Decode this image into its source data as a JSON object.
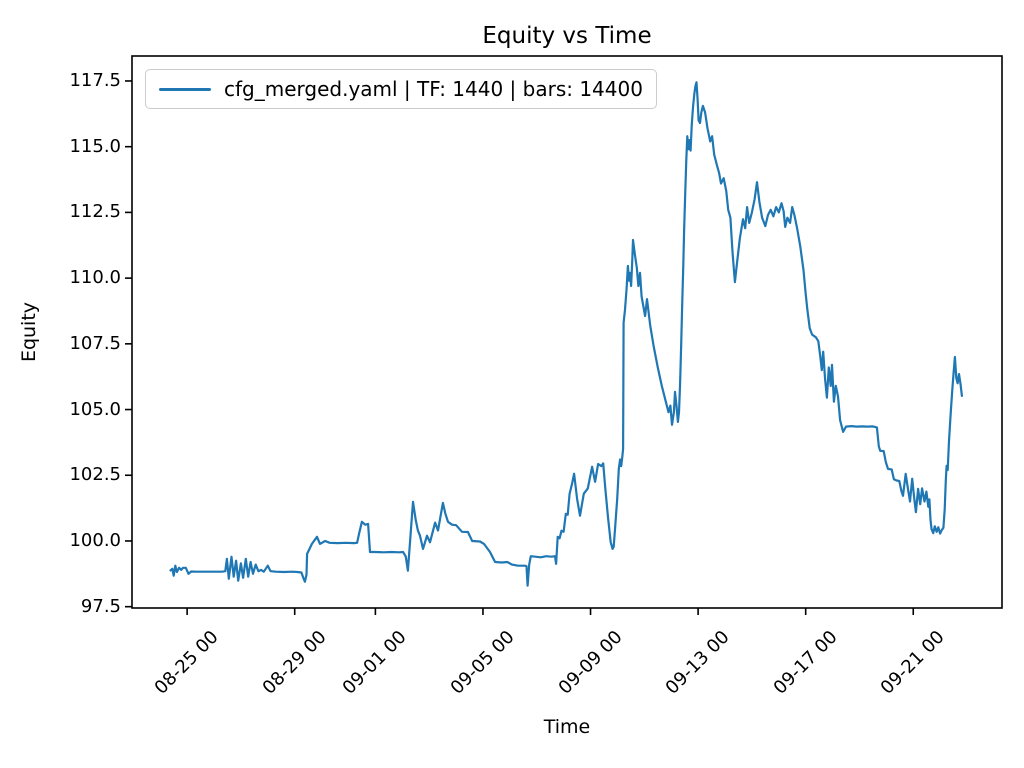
{
  "figure": {
    "title": "Equity vs Time",
    "xlabel": "Time",
    "ylabel": "Equity"
  },
  "legend": {
    "label": "cfg_merged.yaml | TF: 1440 | bars: 14400"
  },
  "colors": {
    "line": "#1f77b4",
    "spine": "#000000",
    "legend_border": "#cccccc",
    "background": "#ffffff",
    "text": "#000000"
  },
  "chart_data": {
    "type": "line",
    "title": "Equity vs Time",
    "xlabel": "Time",
    "ylabel": "Equity",
    "grid": false,
    "legend_position": "upper left",
    "legend_entries": [
      "cfg_merged.yaml | TF: 1440 | bars: 14400"
    ],
    "x_axis": {
      "unit": "days relative to 08-25 00:00",
      "range": [
        -2.05,
        30.3
      ],
      "tick_values": [
        0,
        4,
        7,
        11,
        15,
        19,
        23,
        27
      ],
      "tick_labels": [
        "08-25 00",
        "08-29 00",
        "09-01 00",
        "09-05 00",
        "09-09 00",
        "09-13 00",
        "09-17 00",
        "09-21 00"
      ],
      "tick_rotation_deg": 45
    },
    "y_axis": {
      "range": [
        97.45,
        118.45
      ],
      "tick_values": [
        97.5,
        100.0,
        102.5,
        105.0,
        107.5,
        110.0,
        112.5,
        115.0,
        117.5
      ],
      "tick_labels": [
        "97.5",
        "100.0",
        "102.5",
        "105.0",
        "107.5",
        "110.0",
        "112.5",
        "115.0",
        "117.5"
      ]
    },
    "series": [
      {
        "name": "cfg_merged.yaml | TF: 1440 | bars: 14400",
        "color": "#1f77b4",
        "line_width": 2.2,
        "points": [
          [
            -0.62,
            98.88
          ],
          [
            -0.55,
            98.94
          ],
          [
            -0.5,
            98.68
          ],
          [
            -0.44,
            99.06
          ],
          [
            -0.38,
            98.82
          ],
          [
            -0.3,
            98.98
          ],
          [
            -0.22,
            98.9
          ],
          [
            -0.15,
            98.98
          ],
          [
            -0.05,
            98.98
          ],
          [
            0.05,
            98.75
          ],
          [
            0.15,
            98.84
          ],
          [
            0.35,
            98.83
          ],
          [
            0.6,
            98.83
          ],
          [
            0.85,
            98.83
          ],
          [
            1.1,
            98.83
          ],
          [
            1.3,
            98.83
          ],
          [
            1.42,
            98.85
          ],
          [
            1.48,
            99.32
          ],
          [
            1.55,
            98.56
          ],
          [
            1.65,
            99.4
          ],
          [
            1.73,
            98.64
          ],
          [
            1.82,
            99.25
          ],
          [
            1.9,
            98.49
          ],
          [
            2.0,
            99.15
          ],
          [
            2.08,
            98.6
          ],
          [
            2.18,
            99.32
          ],
          [
            2.27,
            98.64
          ],
          [
            2.36,
            99.2
          ],
          [
            2.45,
            98.75
          ],
          [
            2.55,
            99.1
          ],
          [
            2.65,
            98.85
          ],
          [
            2.75,
            98.9
          ],
          [
            2.85,
            98.83
          ],
          [
            3.0,
            99.06
          ],
          [
            3.1,
            98.85
          ],
          [
            3.3,
            98.83
          ],
          [
            3.6,
            98.82
          ],
          [
            3.9,
            98.83
          ],
          [
            4.1,
            98.82
          ],
          [
            4.25,
            98.8
          ],
          [
            4.32,
            98.6
          ],
          [
            4.38,
            98.45
          ],
          [
            4.44,
            98.72
          ],
          [
            4.46,
            99.51
          ],
          [
            4.55,
            99.7
          ],
          [
            4.64,
            99.89
          ],
          [
            4.83,
            100.16
          ],
          [
            4.94,
            99.89
          ],
          [
            5.13,
            100.0
          ],
          [
            5.3,
            99.93
          ],
          [
            5.6,
            99.92
          ],
          [
            5.9,
            99.93
          ],
          [
            6.2,
            99.92
          ],
          [
            6.32,
            99.93
          ],
          [
            6.4,
            100.3
          ],
          [
            6.5,
            100.73
          ],
          [
            6.62,
            100.62
          ],
          [
            6.73,
            100.65
          ],
          [
            6.8,
            99.58
          ],
          [
            7.0,
            99.58
          ],
          [
            7.3,
            99.57
          ],
          [
            7.6,
            99.58
          ],
          [
            7.9,
            99.57
          ],
          [
            8.03,
            99.58
          ],
          [
            8.13,
            99.4
          ],
          [
            8.21,
            98.87
          ],
          [
            8.3,
            100.1
          ],
          [
            8.4,
            101.49
          ],
          [
            8.5,
            100.8
          ],
          [
            8.58,
            100.4
          ],
          [
            8.66,
            100.2
          ],
          [
            8.77,
            99.7
          ],
          [
            8.92,
            100.2
          ],
          [
            9.03,
            99.95
          ],
          [
            9.22,
            100.7
          ],
          [
            9.33,
            100.4
          ],
          [
            9.51,
            101.45
          ],
          [
            9.6,
            101.05
          ],
          [
            9.7,
            100.73
          ],
          [
            9.85,
            100.62
          ],
          [
            10.0,
            100.6
          ],
          [
            10.22,
            100.35
          ],
          [
            10.44,
            100.34
          ],
          [
            10.6,
            100.0
          ],
          [
            10.89,
            99.98
          ],
          [
            11.04,
            99.89
          ],
          [
            11.26,
            99.58
          ],
          [
            11.45,
            99.2
          ],
          [
            11.7,
            99.18
          ],
          [
            11.9,
            99.2
          ],
          [
            12.08,
            99.1
          ],
          [
            12.3,
            99.06
          ],
          [
            12.55,
            99.06
          ],
          [
            12.62,
            99.04
          ],
          [
            12.66,
            98.3
          ],
          [
            12.72,
            99.1
          ],
          [
            12.78,
            99.42
          ],
          [
            12.95,
            99.4
          ],
          [
            13.15,
            99.38
          ],
          [
            13.35,
            99.42
          ],
          [
            13.55,
            99.4
          ],
          [
            13.68,
            99.42
          ],
          [
            13.72,
            99.13
          ],
          [
            13.78,
            100.16
          ],
          [
            13.85,
            100.1
          ],
          [
            13.92,
            100.39
          ],
          [
            14.0,
            100.35
          ],
          [
            14.08,
            101.03
          ],
          [
            14.15,
            101.0
          ],
          [
            14.22,
            101.8
          ],
          [
            14.32,
            102.2
          ],
          [
            14.39,
            102.56
          ],
          [
            14.5,
            101.6
          ],
          [
            14.61,
            100.96
          ],
          [
            14.75,
            101.8
          ],
          [
            14.9,
            102.0
          ],
          [
            15.06,
            102.82
          ],
          [
            15.17,
            102.25
          ],
          [
            15.28,
            102.93
          ],
          [
            15.4,
            102.85
          ],
          [
            15.47,
            102.95
          ],
          [
            15.55,
            102.0
          ],
          [
            15.65,
            100.9
          ],
          [
            15.75,
            99.95
          ],
          [
            15.82,
            99.7
          ],
          [
            15.86,
            99.78
          ],
          [
            15.92,
            100.6
          ],
          [
            15.99,
            101.6
          ],
          [
            16.05,
            102.74
          ],
          [
            16.1,
            103.1
          ],
          [
            16.14,
            102.85
          ],
          [
            16.18,
            103.2
          ],
          [
            16.21,
            103.5
          ],
          [
            16.23,
            108.3
          ],
          [
            16.28,
            108.8
          ],
          [
            16.34,
            109.6
          ],
          [
            16.39,
            110.46
          ],
          [
            16.43,
            109.9
          ],
          [
            16.47,
            110.2
          ],
          [
            16.51,
            109.7
          ],
          [
            16.55,
            110.6
          ],
          [
            16.58,
            111.45
          ],
          [
            16.65,
            110.9
          ],
          [
            16.72,
            110.4
          ],
          [
            16.78,
            109.7
          ],
          [
            16.84,
            110.2
          ],
          [
            16.9,
            109.3
          ],
          [
            17.03,
            108.56
          ],
          [
            17.1,
            109.2
          ],
          [
            17.22,
            108.2
          ],
          [
            17.35,
            107.4
          ],
          [
            17.5,
            106.6
          ],
          [
            17.65,
            105.9
          ],
          [
            17.8,
            105.3
          ],
          [
            17.9,
            104.9
          ],
          [
            17.97,
            105.15
          ],
          [
            18.03,
            104.42
          ],
          [
            18.1,
            104.9
          ],
          [
            18.14,
            105.67
          ],
          [
            18.2,
            105.1
          ],
          [
            18.25,
            104.53
          ],
          [
            18.29,
            104.9
          ],
          [
            18.33,
            106.0
          ],
          [
            18.37,
            107.5
          ],
          [
            18.41,
            109.0
          ],
          [
            18.45,
            110.5
          ],
          [
            18.48,
            111.8
          ],
          [
            18.52,
            113.2
          ],
          [
            18.56,
            114.5
          ],
          [
            18.6,
            115.4
          ],
          [
            18.64,
            114.9
          ],
          [
            18.68,
            115.25
          ],
          [
            18.72,
            114.85
          ],
          [
            18.76,
            115.8
          ],
          [
            18.81,
            116.5
          ],
          [
            18.86,
            117.0
          ],
          [
            18.9,
            117.3
          ],
          [
            18.94,
            117.45
          ],
          [
            18.98,
            116.8
          ],
          [
            19.02,
            116.0
          ],
          [
            19.07,
            115.9
          ],
          [
            19.12,
            116.3
          ],
          [
            19.18,
            116.55
          ],
          [
            19.26,
            116.3
          ],
          [
            19.35,
            115.7
          ],
          [
            19.45,
            115.2
          ],
          [
            19.52,
            115.4
          ],
          [
            19.6,
            114.7
          ],
          [
            19.7,
            114.3
          ],
          [
            19.78,
            114.0
          ],
          [
            19.85,
            113.6
          ],
          [
            19.95,
            113.8
          ],
          [
            20.05,
            113.3
          ],
          [
            20.12,
            112.6
          ],
          [
            20.2,
            112.3
          ],
          [
            20.28,
            111.0
          ],
          [
            20.37,
            109.85
          ],
          [
            20.45,
            110.6
          ],
          [
            20.55,
            111.5
          ],
          [
            20.67,
            112.24
          ],
          [
            20.75,
            111.9
          ],
          [
            20.82,
            112.7
          ],
          [
            20.9,
            112.1
          ],
          [
            21.0,
            112.5
          ],
          [
            21.1,
            113.0
          ],
          [
            21.19,
            113.65
          ],
          [
            21.28,
            112.9
          ],
          [
            21.38,
            112.3
          ],
          [
            21.5,
            111.98
          ],
          [
            21.6,
            112.4
          ],
          [
            21.7,
            112.6
          ],
          [
            21.8,
            112.35
          ],
          [
            21.9,
            112.7
          ],
          [
            22.0,
            112.5
          ],
          [
            22.1,
            112.85
          ],
          [
            22.18,
            112.55
          ],
          [
            22.24,
            111.95
          ],
          [
            22.32,
            112.3
          ],
          [
            22.42,
            112.1
          ],
          [
            22.5,
            112.7
          ],
          [
            22.58,
            112.4
          ],
          [
            22.68,
            111.9
          ],
          [
            22.8,
            111.2
          ],
          [
            22.92,
            110.3
          ],
          [
            23.0,
            109.4
          ],
          [
            23.06,
            108.82
          ],
          [
            23.15,
            108.1
          ],
          [
            23.24,
            107.85
          ],
          [
            23.38,
            107.75
          ],
          [
            23.47,
            107.6
          ],
          [
            23.54,
            107.04
          ],
          [
            23.6,
            106.5
          ],
          [
            23.65,
            107.2
          ],
          [
            23.72,
            106.2
          ],
          [
            23.79,
            105.45
          ],
          [
            23.86,
            106.6
          ],
          [
            23.93,
            105.9
          ],
          [
            23.98,
            106.7
          ],
          [
            24.05,
            105.3
          ],
          [
            24.12,
            105.9
          ],
          [
            24.2,
            105.5
          ],
          [
            24.28,
            104.6
          ],
          [
            24.39,
            104.15
          ],
          [
            24.5,
            104.35
          ],
          [
            24.7,
            104.37
          ],
          [
            24.9,
            104.35
          ],
          [
            25.1,
            104.36
          ],
          [
            25.3,
            104.35
          ],
          [
            25.5,
            104.36
          ],
          [
            25.65,
            104.32
          ],
          [
            25.72,
            103.6
          ],
          [
            25.77,
            103.43
          ],
          [
            25.9,
            103.42
          ],
          [
            25.98,
            103.0
          ],
          [
            26.06,
            102.74
          ],
          [
            26.2,
            102.72
          ],
          [
            26.28,
            102.35
          ],
          [
            26.38,
            102.3
          ],
          [
            26.48,
            102.28
          ],
          [
            26.56,
            101.9
          ],
          [
            26.62,
            101.72
          ],
          [
            26.72,
            102.55
          ],
          [
            26.81,
            101.95
          ],
          [
            26.88,
            101.5
          ],
          [
            26.96,
            102.37
          ],
          [
            27.04,
            101.6
          ],
          [
            27.1,
            101.1
          ],
          [
            27.18,
            101.98
          ],
          [
            27.26,
            101.4
          ],
          [
            27.33,
            102.0
          ],
          [
            27.42,
            101.5
          ],
          [
            27.49,
            101.88
          ],
          [
            27.56,
            101.3
          ],
          [
            27.6,
            101.58
          ],
          [
            27.64,
            100.8
          ],
          [
            27.68,
            100.46
          ],
          [
            27.74,
            100.3
          ],
          [
            27.8,
            100.56
          ],
          [
            27.87,
            100.35
          ],
          [
            27.93,
            100.52
          ],
          [
            28.0,
            100.28
          ],
          [
            28.06,
            100.42
          ],
          [
            28.12,
            100.5
          ],
          [
            28.17,
            101.2
          ],
          [
            28.21,
            102.3
          ],
          [
            28.24,
            102.86
          ],
          [
            28.28,
            102.7
          ],
          [
            28.33,
            103.8
          ],
          [
            28.39,
            104.8
          ],
          [
            28.45,
            105.7
          ],
          [
            28.5,
            106.4
          ],
          [
            28.55,
            107.0
          ],
          [
            28.6,
            106.2
          ],
          [
            28.65,
            106.0
          ],
          [
            28.7,
            106.35
          ],
          [
            28.76,
            105.95
          ],
          [
            28.81,
            105.52
          ]
        ]
      }
    ]
  }
}
